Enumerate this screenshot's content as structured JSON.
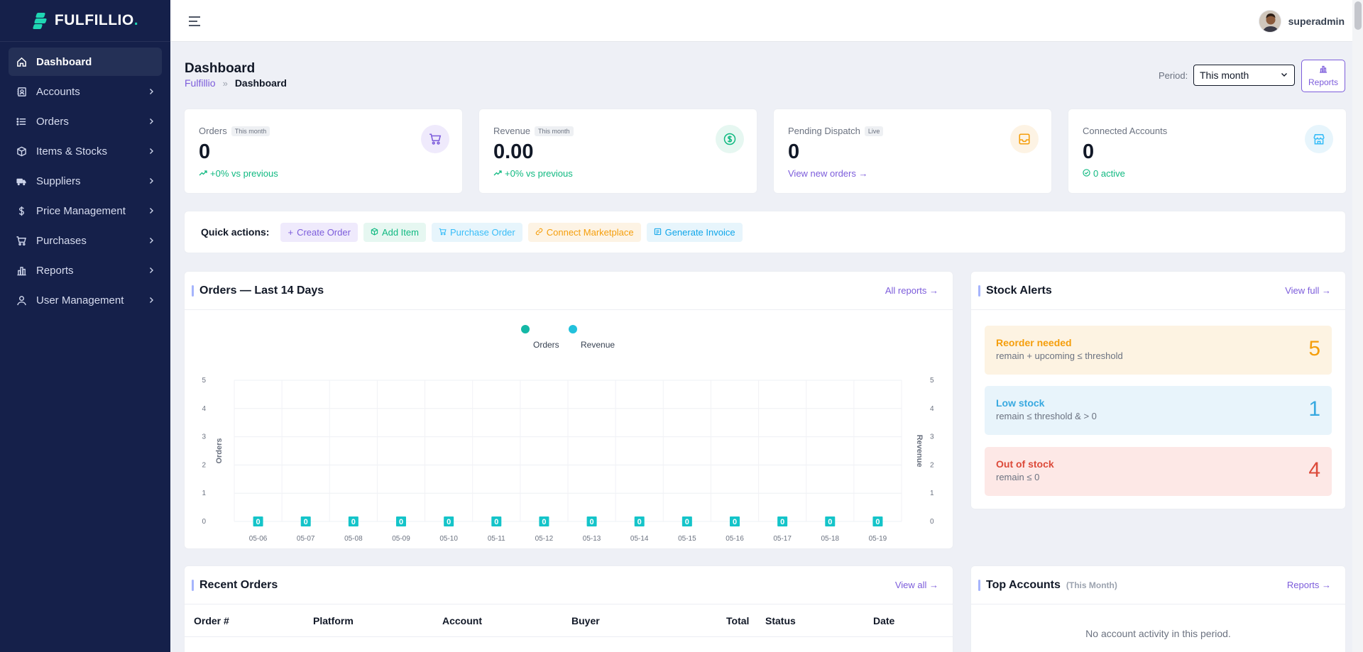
{
  "brand": {
    "name": "FULFILLIO",
    "dot": "."
  },
  "sidebar": {
    "items": [
      {
        "label": "Dashboard",
        "icon": "home-icon",
        "active": true
      },
      {
        "label": "Accounts",
        "icon": "accounts-icon"
      },
      {
        "label": "Orders",
        "icon": "list-icon"
      },
      {
        "label": "Items & Stocks",
        "icon": "box-icon"
      },
      {
        "label": "Suppliers",
        "icon": "truck-icon"
      },
      {
        "label": "Price Management",
        "icon": "dollar-icon"
      },
      {
        "label": "Purchases",
        "icon": "cart-icon"
      },
      {
        "label": "Reports",
        "icon": "chart-icon"
      },
      {
        "label": "User Management",
        "icon": "user-icon"
      }
    ]
  },
  "topbar": {
    "username": "superadmin"
  },
  "header": {
    "title": "Dashboard",
    "breadcrumb": {
      "root": "Fulfillio",
      "sep": "»",
      "current": "Dashboard"
    },
    "period_label": "Period:",
    "period_value": "This month",
    "reports_button": "Reports"
  },
  "kpis": [
    {
      "label": "Orders",
      "badge": "This month",
      "value": "0",
      "foot": "+0% vs previous",
      "icon": "cart-icon",
      "accent": "#7c5cdb",
      "icon_bg": "#efeafc",
      "foot_color": "#10b981"
    },
    {
      "label": "Revenue",
      "badge": "This month",
      "value": "0.00",
      "foot": "+0% vs previous",
      "icon": "dollar-circle-icon",
      "accent": "#10b981",
      "icon_bg": "#e6f7f1",
      "foot_color": "#10b981"
    },
    {
      "label": "Pending Dispatch",
      "badge": "Live",
      "value": "0",
      "foot": "View new orders →",
      "icon": "inbox-icon",
      "accent": "#f59e0b",
      "icon_bg": "#fdf3e4",
      "foot_color": "#7c5cdb"
    },
    {
      "label": "Connected Accounts",
      "badge": "",
      "value": "0",
      "foot": "0 active",
      "icon": "store-icon",
      "accent": "#38bdf8",
      "icon_bg": "#e7f5fc",
      "foot_color": "#10b981"
    }
  ],
  "quick_actions": {
    "title": "Quick actions:",
    "items": [
      {
        "label": "Create Order",
        "glyph": "+",
        "color": "#7c5cdb",
        "bg": "#efeafc"
      },
      {
        "label": "Add Item",
        "glyph": "⬡",
        "color": "#10b981",
        "bg": "#e6f7f1"
      },
      {
        "label": "Purchase Order",
        "glyph": "🛒",
        "color": "#38bdf8",
        "bg": "#e7f5fc"
      },
      {
        "label": "Connect Marketplace",
        "glyph": "⚭",
        "color": "#f59e0b",
        "bg": "#fdf3e4"
      },
      {
        "label": "Generate Invoice",
        "glyph": "▤",
        "color": "#0ea5e9",
        "bg": "#e7f5fc"
      }
    ]
  },
  "orders_chart": {
    "title": "Orders — Last 14 Days",
    "link": "All reports →"
  },
  "chart_data": {
    "type": "bar",
    "categories": [
      "05-06",
      "05-07",
      "05-08",
      "05-09",
      "05-10",
      "05-11",
      "05-12",
      "05-13",
      "05-14",
      "05-15",
      "05-16",
      "05-17",
      "05-18",
      "05-19"
    ],
    "series": [
      {
        "name": "Orders",
        "values": [
          0,
          0,
          0,
          0,
          0,
          0,
          0,
          0,
          0,
          0,
          0,
          0,
          0,
          0
        ],
        "color": "#14b8a6"
      },
      {
        "name": "Revenue",
        "values": [
          0,
          0,
          0,
          0,
          0,
          0,
          0,
          0,
          0,
          0,
          0,
          0,
          0,
          0
        ],
        "color": "#22c1dc"
      }
    ],
    "data_labels": [
      "0",
      "0",
      "0",
      "0",
      "0",
      "0",
      "0",
      "0",
      "0",
      "0",
      "0",
      "0",
      "0",
      "0"
    ],
    "ylabel": "Orders",
    "y2label": "Revenue",
    "ylim": [
      0,
      5
    ],
    "y2lim": [
      0,
      5
    ],
    "yticks": [
      "0",
      "1",
      "2",
      "3",
      "4",
      "5"
    ],
    "legend": "top-center",
    "grid": true
  },
  "stock_alerts": {
    "title": "Stock Alerts",
    "link": "View full →",
    "items": [
      {
        "title": "Reorder needed",
        "desc": "remain + upcoming ≤ threshold",
        "count": "5",
        "color": "#f59e0b",
        "bg": "#fdf3e2"
      },
      {
        "title": "Low stock",
        "desc": "remain ≤ threshold & > 0",
        "count": "1",
        "color": "#38a9e0",
        "bg": "#e8f4fb"
      },
      {
        "title": "Out of stock",
        "desc": "remain ≤ 0",
        "count": "4",
        "color": "#dc4a3a",
        "bg": "#fde8e6"
      }
    ]
  },
  "recent_orders": {
    "title": "Recent Orders",
    "link": "View all →",
    "columns": [
      "Order #",
      "Platform",
      "Account",
      "Buyer",
      "Total",
      "Status",
      "Date"
    ]
  },
  "top_accounts": {
    "title": "Top Accounts",
    "subtitle": "(This Month)",
    "link": "Reports →",
    "empty": "No account activity in this period."
  }
}
